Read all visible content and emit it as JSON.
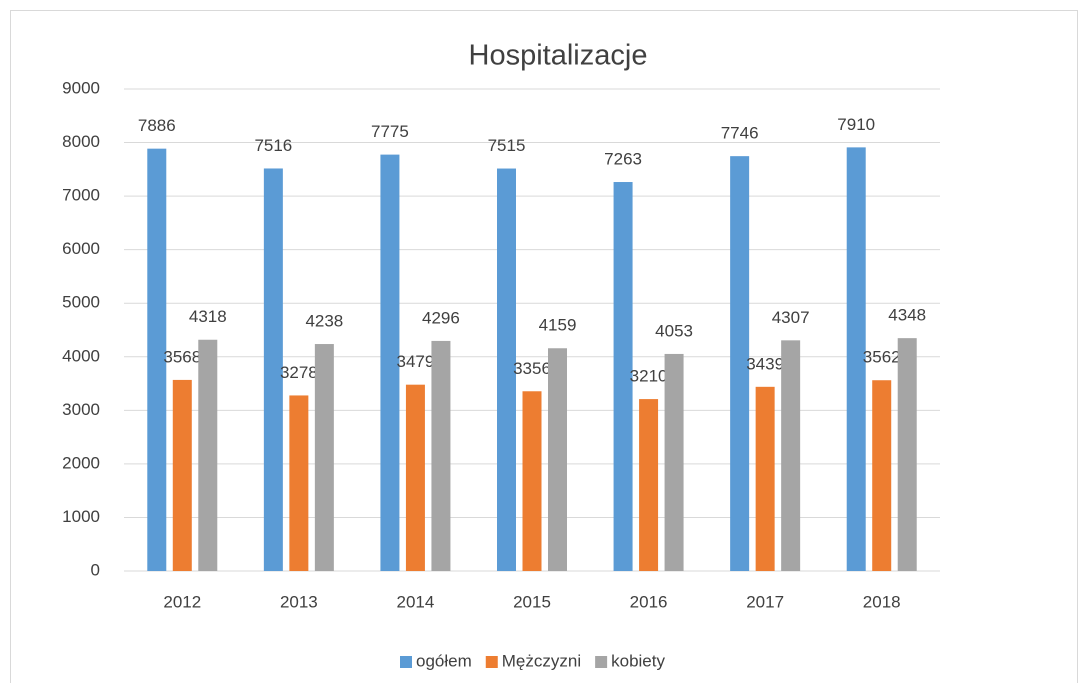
{
  "chart_data": {
    "type": "bar",
    "title": "Hospitalizacje",
    "categories": [
      "2012",
      "2013",
      "2014",
      "2015",
      "2016",
      "2017",
      "2018"
    ],
    "series": [
      {
        "name": "ogółem",
        "color": "#5b9bd5",
        "values": [
          7886,
          7516,
          7775,
          7515,
          7263,
          7746,
          7910
        ]
      },
      {
        "name": "Mężczyzni",
        "color": "#ed7d31",
        "values": [
          3568,
          3278,
          3479,
          3356,
          3210,
          3439,
          3562
        ]
      },
      {
        "name": "kobiety",
        "color": "#a5a5a5",
        "values": [
          4318,
          4238,
          4296,
          4159,
          4053,
          4307,
          4348
        ]
      }
    ],
    "ylim": [
      0,
      9000
    ],
    "yticks": [
      0,
      1000,
      2000,
      3000,
      4000,
      5000,
      6000,
      7000,
      8000,
      9000
    ],
    "grid": true,
    "legend": "bottom"
  }
}
